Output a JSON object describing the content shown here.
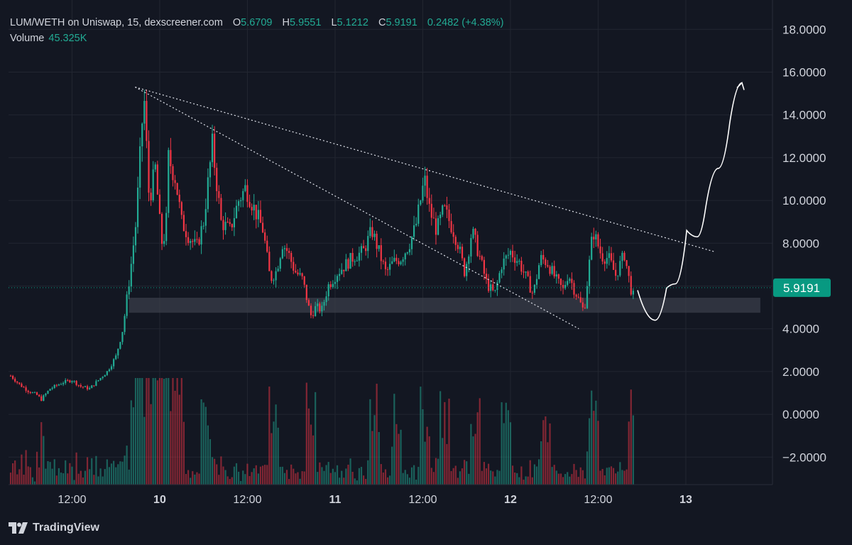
{
  "header": {
    "title": "LUM/WETH on Uniswap, 15, dexscreener.com",
    "o_label": "O",
    "o_value": "5.6709",
    "h_label": "H",
    "h_value": "5.9551",
    "l_label": "L",
    "l_value": "5.1212",
    "c_label": "C",
    "c_value": "5.9191",
    "change": "0.2482 (+4.38%)",
    "volume_label": "Volume",
    "volume_value": "45.325K"
  },
  "brand": "TradingView",
  "colors": {
    "background": "#131722",
    "up": "#22ab94",
    "down": "#f23645",
    "grid": "#222631",
    "text": "#d1d4dc",
    "badge": "#089981"
  },
  "chart_data": {
    "type": "candlestick",
    "symbol": "LUM/WETH",
    "interval": "15",
    "ylim": [
      -3.2,
      18.6
    ],
    "y_ticks": [
      "18.0000",
      "16.0000",
      "14.0000",
      "12.0000",
      "10.0000",
      "8.0000",
      "6.0000",
      "4.0000",
      "2.0000",
      "0.0000",
      "−2.0000"
    ],
    "x_ticks": [
      "12:00",
      "10",
      "12:00",
      "11",
      "12:00",
      "12",
      "12:00",
      "13"
    ],
    "x_ticks_bold": [
      "10",
      "11",
      "12",
      "13"
    ],
    "x_range_hours": [
      0,
      64.5
    ],
    "last_price": "5.9191",
    "path_anchors": [
      [
        0,
        1.8
      ],
      [
        1,
        1.4
      ],
      [
        2,
        1.1
      ],
      [
        3,
        0.9
      ],
      [
        3.5,
        0.7
      ],
      [
        4.5,
        1.2
      ],
      [
        6,
        1.5
      ],
      [
        7,
        1.6
      ],
      [
        8,
        1.3
      ],
      [
        9,
        1.2
      ],
      [
        10,
        1.6
      ],
      [
        11,
        2.0
      ],
      [
        12,
        2.7
      ],
      [
        12.8,
        4.0
      ],
      [
        13.6,
        6.5
      ],
      [
        14.3,
        9.0
      ],
      [
        15.2,
        15.0
      ],
      [
        15.8,
        10.0
      ],
      [
        16.5,
        11.5
      ],
      [
        17.2,
        8.0
      ],
      [
        17.7,
        8.5
      ],
      [
        18,
        12.0
      ],
      [
        18.8,
        11.0
      ],
      [
        19.5,
        9.0
      ],
      [
        20.2,
        8.4
      ],
      [
        21.2,
        7.8
      ],
      [
        22,
        9.0
      ],
      [
        23,
        12.6
      ],
      [
        24,
        9.0
      ],
      [
        25,
        8.6
      ],
      [
        26,
        10.0
      ],
      [
        26.8,
        10.6
      ],
      [
        27.8,
        9.6
      ],
      [
        28.8,
        8.6
      ],
      [
        29.6,
        6.3
      ],
      [
        30.3,
        6.7
      ],
      [
        31,
        8.0
      ],
      [
        31.6,
        7.6
      ],
      [
        32.4,
        6.7
      ],
      [
        33.3,
        6.3
      ],
      [
        34.2,
        4.6
      ],
      [
        34.8,
        5.0
      ],
      [
        35.5,
        4.9
      ],
      [
        36.2,
        6.0
      ],
      [
        37.2,
        6.6
      ],
      [
        38.2,
        7.0
      ],
      [
        39.2,
        7.4
      ],
      [
        40.2,
        7.6
      ],
      [
        41.2,
        8.6
      ],
      [
        42,
        7.6
      ],
      [
        42.8,
        6.6
      ],
      [
        43.6,
        7.1
      ],
      [
        44.5,
        7.3
      ],
      [
        45.4,
        7.9
      ],
      [
        46.2,
        8.8
      ],
      [
        47.2,
        11.0
      ],
      [
        47.8,
        9.5
      ],
      [
        48.6,
        8.6
      ],
      [
        49.4,
        9.6
      ],
      [
        50.4,
        8.7
      ],
      [
        51,
        8.0
      ],
      [
        51.8,
        6.6
      ],
      [
        52.6,
        8.6
      ],
      [
        53.4,
        7.5
      ],
      [
        54.3,
        6.1
      ],
      [
        55.2,
        5.6
      ],
      [
        56,
        7.0
      ],
      [
        57,
        7.6
      ],
      [
        58,
        7.1
      ],
      [
        59,
        6.2
      ],
      [
        59.6,
        5.6
      ],
      [
        60.4,
        7.3
      ],
      [
        61.2,
        7.1
      ],
      [
        62.2,
        6.3
      ],
      [
        63,
        5.8
      ],
      [
        63.6,
        6.6
      ],
      [
        64.2,
        5.9
      ],
      [
        65.4,
        4.8
      ],
      [
        66.4,
        8.6
      ],
      [
        67.4,
        7.4
      ],
      [
        68.2,
        7.3
      ],
      [
        69,
        6.5
      ],
      [
        70,
        7.5
      ],
      [
        70.7,
        5.9
      ],
      [
        71.2,
        5.3
      ]
    ],
    "volume_spike_hours": [
      14.3,
      15.2,
      16,
      16.8,
      17.5,
      18.2,
      19,
      22.3,
      30,
      34.2,
      41.5,
      44,
      47.2,
      49.5,
      53,
      56.5,
      61,
      66.5,
      71
    ]
  },
  "drawings": {
    "support_zone": {
      "from_hour": 13.5,
      "to_hour": 85.5,
      "y_low": 4.75,
      "y_high": 5.45
    },
    "trendline_upper": {
      "from": [
        14.2,
        15.3
      ],
      "to": [
        80.3,
        7.6
      ]
    },
    "trendline_lower": {
      "from": [
        14.2,
        15.3
      ],
      "to": [
        64.8,
        4.0
      ]
    },
    "projection": [
      [
        71.5,
        5.8
      ],
      [
        73.5,
        4.4
      ],
      [
        74.8,
        5.9
      ],
      [
        75.8,
        6.1
      ],
      [
        77.1,
        8.6
      ],
      [
        78.3,
        8.3
      ],
      [
        79.2,
        9.5
      ],
      [
        80.7,
        11.5
      ],
      [
        82.0,
        13.6
      ],
      [
        83.4,
        15.5
      ]
    ]
  }
}
